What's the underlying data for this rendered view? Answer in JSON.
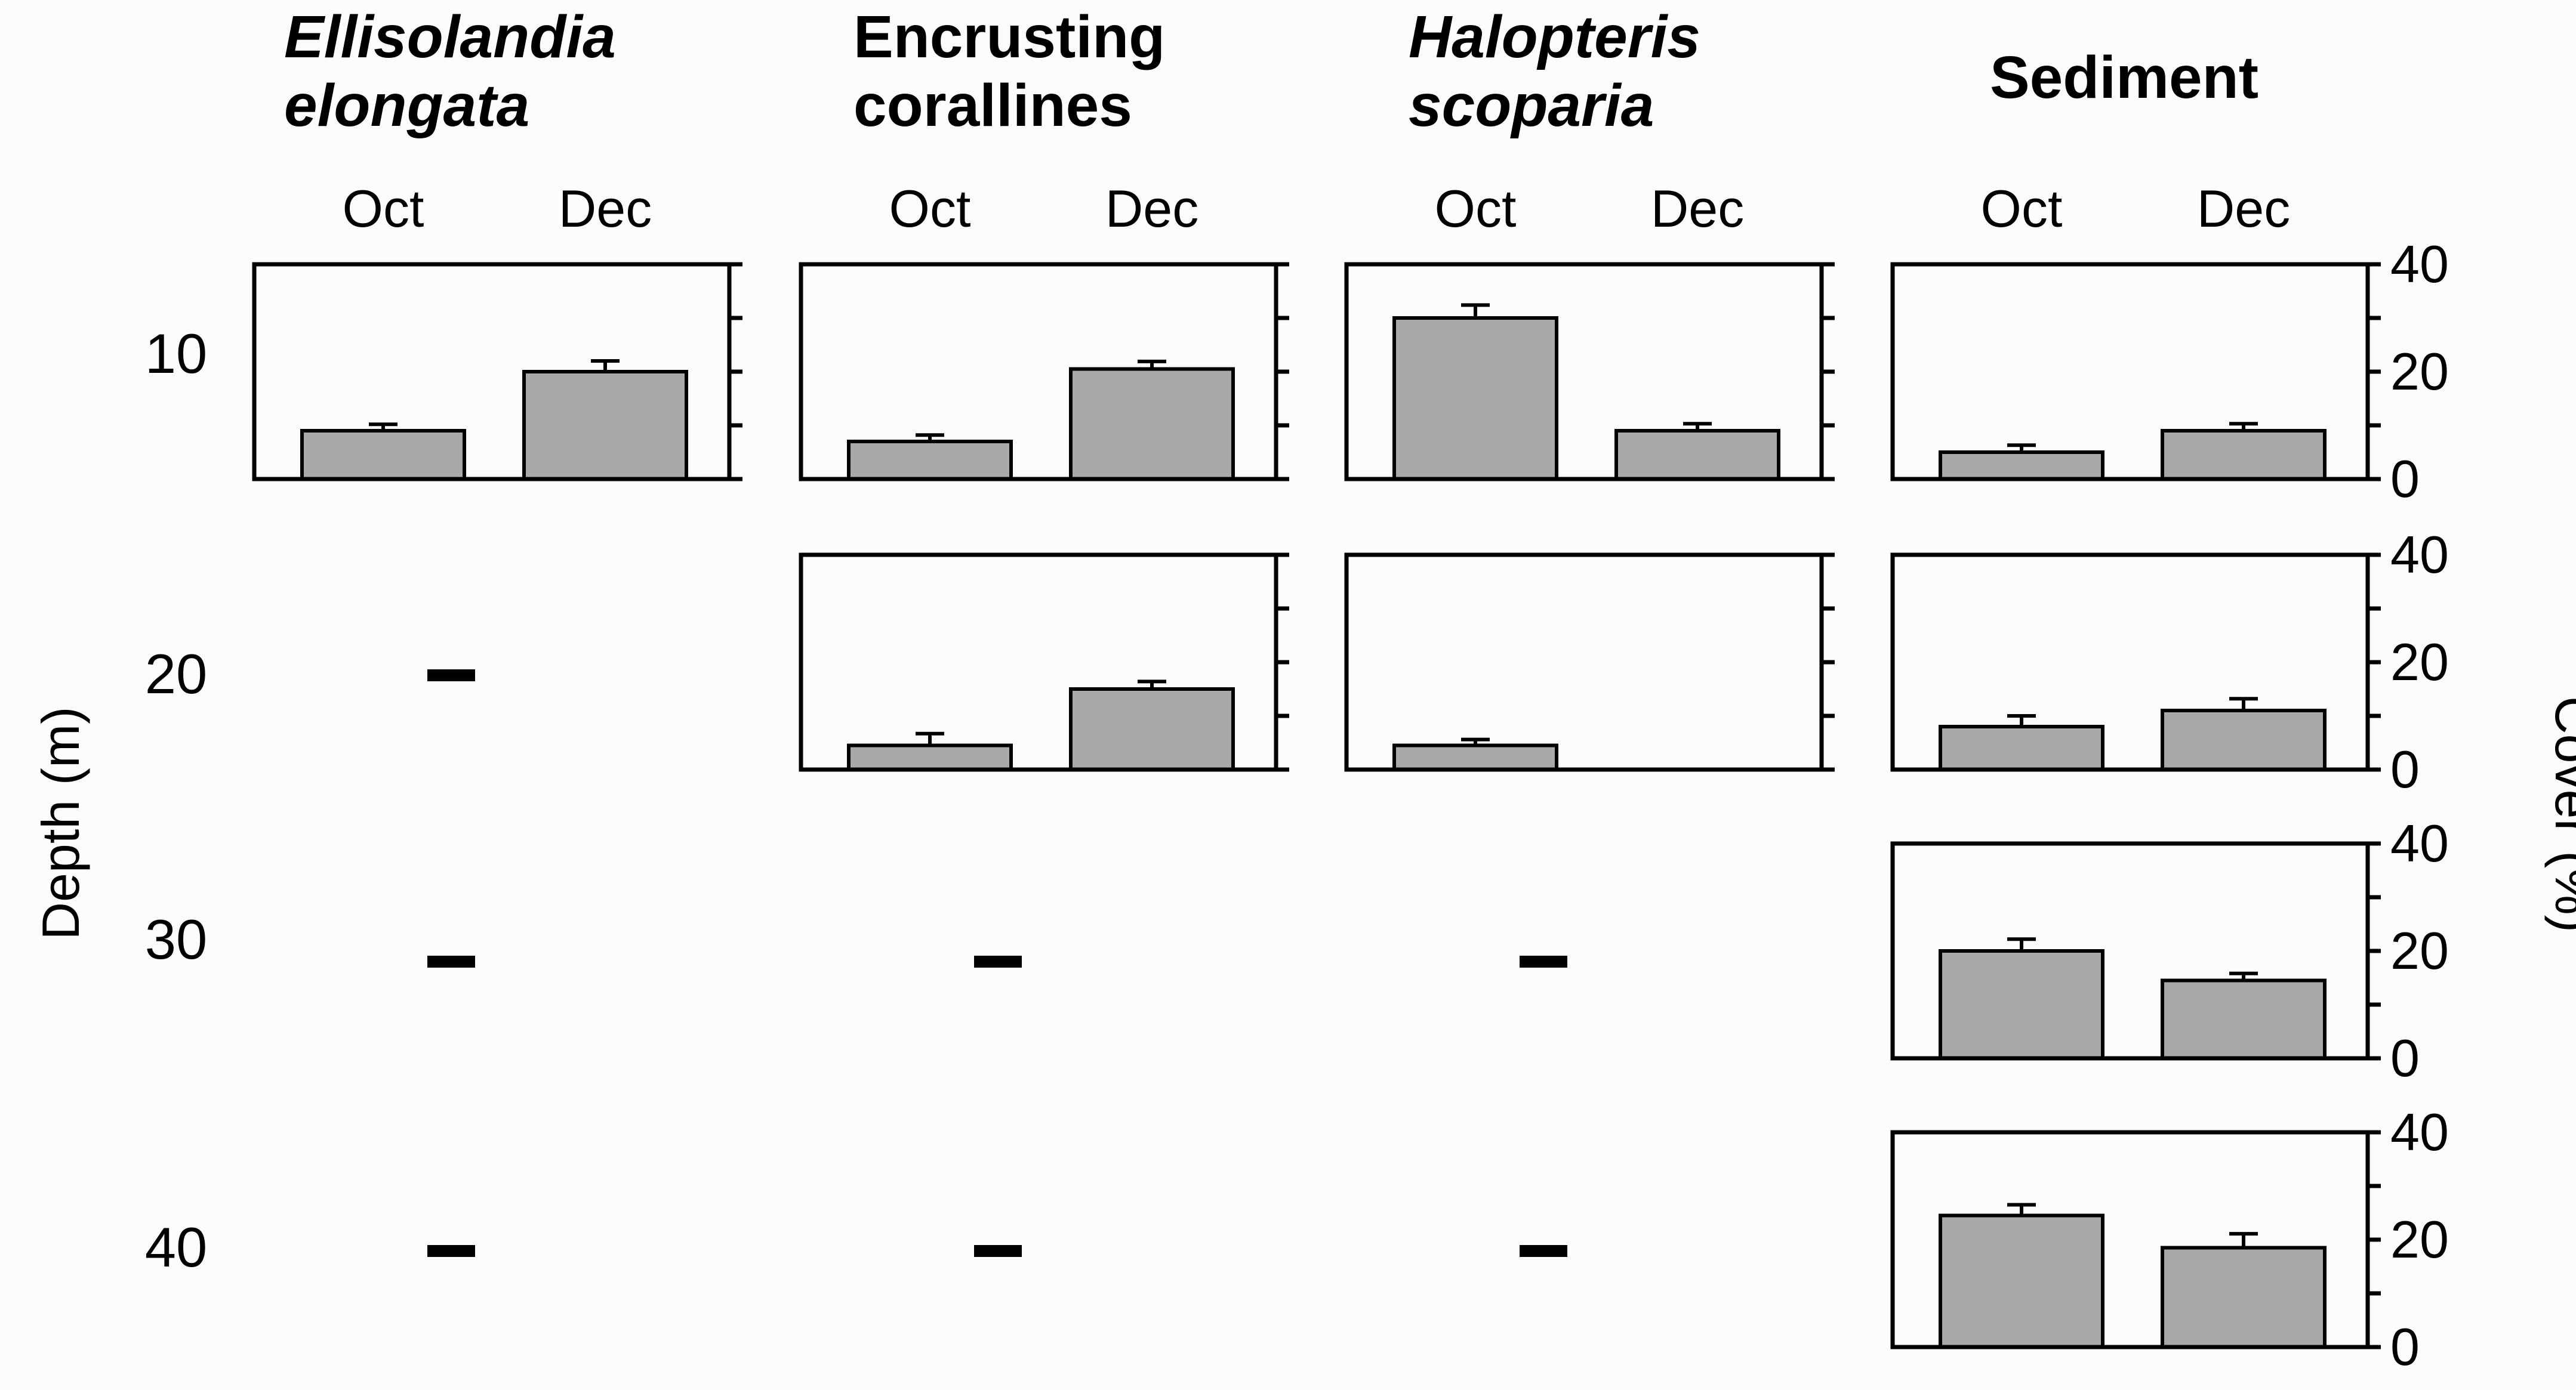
{
  "chart_data": {
    "type": "bar",
    "panel_layout": "grid: rows = depth, columns = taxon; grouped Oct/Dec bars; mean cover with error bars",
    "columns": [
      {
        "key": "ellisolandia",
        "title_lines": [
          "Ellisolandia",
          "elongata"
        ],
        "italic": true
      },
      {
        "key": "corallines",
        "title_lines": [
          "Encrusting",
          "corallines"
        ],
        "italic": false
      },
      {
        "key": "halopteris",
        "title_lines": [
          "Halopteris",
          "scoparia"
        ],
        "italic": true
      },
      {
        "key": "sediment",
        "title_lines": [
          "Sediment"
        ],
        "italic": false
      }
    ],
    "categories": [
      "Oct",
      "Dec"
    ],
    "depths": [
      "10",
      "20",
      "30",
      "40"
    ],
    "ylabel_left": "Depth (m)",
    "ylabel_right": "Cover (%)",
    "ylim": [
      0,
      40
    ],
    "yticks": [
      "0",
      "20",
      "40"
    ],
    "panels": [
      {
        "row": 0,
        "col": 0,
        "values": [
          9,
          20
        ],
        "errors": [
          1.2,
          2.0
        ]
      },
      {
        "row": 0,
        "col": 1,
        "values": [
          7,
          20.5
        ],
        "errors": [
          1.2,
          1.4
        ]
      },
      {
        "row": 0,
        "col": 2,
        "values": [
          30,
          9
        ],
        "errors": [
          2.4,
          1.3
        ]
      },
      {
        "row": 0,
        "col": 3,
        "values": [
          5,
          9
        ],
        "errors": [
          1.3,
          1.3
        ]
      },
      {
        "row": 1,
        "col": 0,
        "absent": true
      },
      {
        "row": 1,
        "col": 1,
        "values": [
          4.5,
          15
        ],
        "errors": [
          2.2,
          1.4
        ]
      },
      {
        "row": 1,
        "col": 2,
        "values": [
          4.5,
          0
        ],
        "errors": [
          1.1,
          0
        ]
      },
      {
        "row": 1,
        "col": 3,
        "values": [
          8,
          11
        ],
        "errors": [
          2.0,
          2.2
        ]
      },
      {
        "row": 2,
        "col": 0,
        "absent": true
      },
      {
        "row": 2,
        "col": 1,
        "absent": true
      },
      {
        "row": 2,
        "col": 2,
        "absent": true
      },
      {
        "row": 2,
        "col": 3,
        "values": [
          20,
          14.5
        ],
        "errors": [
          2.2,
          1.3
        ]
      },
      {
        "row": 3,
        "col": 0,
        "absent": true
      },
      {
        "row": 3,
        "col": 1,
        "absent": true
      },
      {
        "row": 3,
        "col": 2,
        "absent": true
      },
      {
        "row": 3,
        "col": 3,
        "values": [
          24.5,
          18.5
        ],
        "errors": [
          2.0,
          2.6
        ]
      }
    ]
  }
}
